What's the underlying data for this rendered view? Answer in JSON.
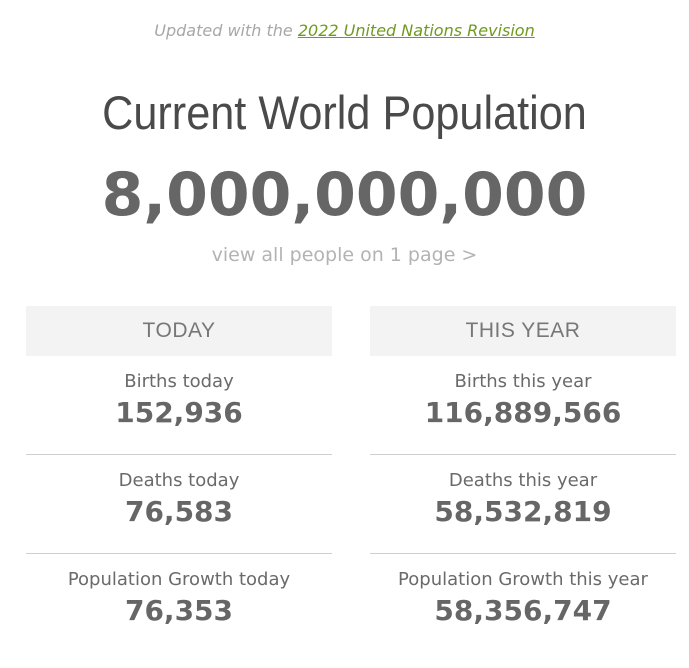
{
  "header": {
    "updated_prefix": "Updated with the ",
    "updated_link": "2022 United Nations Revision"
  },
  "main": {
    "title": "Current World Population",
    "population": "8,000,000,000",
    "view_all_link": "view all people on 1 page >"
  },
  "today": {
    "heading": "TODAY",
    "stats": [
      {
        "label": "Births today",
        "value": "152,936"
      },
      {
        "label": "Deaths today",
        "value": "76,583"
      },
      {
        "label": "Population Growth today",
        "value": "76,353"
      }
    ]
  },
  "this_year": {
    "heading": "THIS YEAR",
    "stats": [
      {
        "label": "Births this year",
        "value": "116,889,566"
      },
      {
        "label": "Deaths this year",
        "value": "58,532,819"
      },
      {
        "label": "Population Growth this year",
        "value": "58,356,747"
      }
    ]
  },
  "colors": {
    "link_green": "#6f9a1f",
    "panel_header_bg": "#f3f3f3",
    "text_gray": "#666666"
  }
}
